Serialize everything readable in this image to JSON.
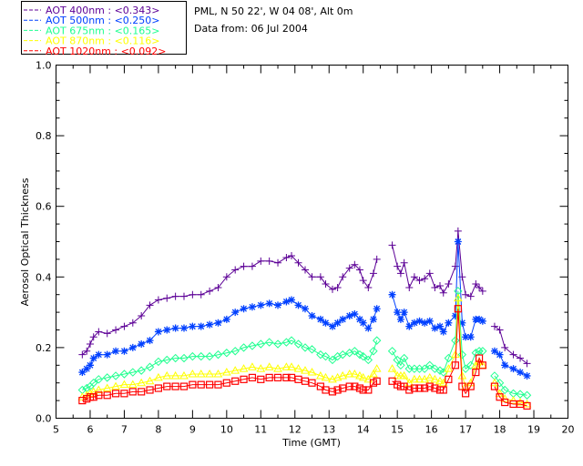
{
  "chart_data": {
    "type": "line",
    "title_lines": [
      "PML, N 50 22', W 04 08', Alt 0m",
      "Data from: 06 Jul 2004"
    ],
    "xlabel": "Time (GMT)",
    "ylabel": "Aerosol Optical Thickness",
    "xlim": [
      5,
      20
    ],
    "ylim": [
      0.0,
      1.0
    ],
    "xticks": [
      5,
      6,
      7,
      8,
      9,
      10,
      11,
      12,
      13,
      14,
      15,
      16,
      17,
      18,
      19,
      20
    ],
    "yticks": [
      "0.0",
      "0.2",
      "0.4",
      "0.6",
      "0.8",
      "1.0"
    ],
    "legend_placement": "top-left outside",
    "x": [
      5.77,
      5.9,
      6.0,
      6.1,
      6.25,
      6.5,
      6.75,
      7.0,
      7.25,
      7.5,
      7.75,
      8.0,
      8.25,
      8.5,
      8.75,
      9.0,
      9.25,
      9.5,
      9.75,
      10.0,
      10.25,
      10.5,
      10.75,
      11.0,
      11.25,
      11.5,
      11.75,
      11.9,
      12.1,
      12.3,
      12.5,
      12.75,
      12.9,
      13.1,
      13.25,
      13.4,
      13.6,
      13.75,
      13.9,
      14.0,
      14.15,
      14.3,
      14.4,
      14.6,
      14.85,
      15.0,
      15.1,
      15.2,
      15.35,
      15.5,
      15.65,
      15.8,
      15.95,
      16.1,
      16.25,
      16.35,
      16.5,
      16.7,
      16.78,
      16.9,
      17.0,
      17.15,
      17.3,
      17.4,
      17.5,
      17.7,
      17.85,
      18.0,
      18.15,
      18.4,
      18.6,
      18.8
    ],
    "series": [
      {
        "name": "AOT  400nm : <0.343>",
        "marker": "plus",
        "color": "#5c0096",
        "values": [
          0.18,
          0.19,
          0.21,
          0.23,
          0.245,
          0.24,
          0.25,
          0.26,
          0.27,
          0.29,
          0.32,
          0.335,
          0.34,
          0.345,
          0.345,
          0.35,
          0.35,
          0.36,
          0.37,
          0.4,
          0.42,
          0.43,
          0.43,
          0.445,
          0.445,
          0.44,
          0.455,
          0.46,
          0.44,
          0.42,
          0.4,
          0.4,
          0.38,
          0.365,
          0.37,
          0.4,
          0.425,
          0.435,
          0.42,
          0.39,
          0.37,
          0.41,
          0.45,
          null,
          0.49,
          0.43,
          0.41,
          0.44,
          0.37,
          0.4,
          0.39,
          0.395,
          0.41,
          0.37,
          0.375,
          0.355,
          0.38,
          0.43,
          0.53,
          0.4,
          0.35,
          0.345,
          0.38,
          0.37,
          0.36,
          null,
          0.26,
          0.25,
          0.2,
          0.18,
          0.17,
          0.155
        ]
      },
      {
        "name": "AOT  500nm : <0.250>",
        "marker": "asterisk",
        "color": "#0040ff",
        "values": [
          0.13,
          0.14,
          0.15,
          0.17,
          0.18,
          0.18,
          0.19,
          0.19,
          0.2,
          0.21,
          0.22,
          0.245,
          0.25,
          0.255,
          0.255,
          0.26,
          0.26,
          0.265,
          0.27,
          0.28,
          0.3,
          0.31,
          0.315,
          0.32,
          0.325,
          0.32,
          0.33,
          0.335,
          0.32,
          0.31,
          0.29,
          0.28,
          0.27,
          0.26,
          0.27,
          0.28,
          0.29,
          0.295,
          0.28,
          0.27,
          0.255,
          0.28,
          0.31,
          null,
          0.35,
          0.3,
          0.28,
          0.3,
          0.26,
          0.27,
          0.275,
          0.27,
          0.275,
          0.255,
          0.26,
          0.245,
          0.27,
          0.29,
          0.5,
          0.27,
          0.23,
          0.23,
          0.28,
          0.28,
          0.275,
          null,
          0.19,
          0.18,
          0.15,
          0.14,
          0.13,
          0.12
        ]
      },
      {
        "name": "AOT  675nm : <0.165>",
        "marker": "diamond",
        "color": "#20ff90",
        "values": [
          0.08,
          0.085,
          0.09,
          0.1,
          0.11,
          0.115,
          0.12,
          0.125,
          0.13,
          0.135,
          0.145,
          0.16,
          0.165,
          0.17,
          0.17,
          0.175,
          0.175,
          0.175,
          0.18,
          0.185,
          0.19,
          0.2,
          0.205,
          0.21,
          0.215,
          0.21,
          0.215,
          0.22,
          0.21,
          0.2,
          0.195,
          0.18,
          0.175,
          0.165,
          0.175,
          0.18,
          0.185,
          0.19,
          0.18,
          0.175,
          0.165,
          0.19,
          0.22,
          null,
          0.19,
          0.165,
          0.15,
          0.17,
          0.14,
          0.14,
          0.14,
          0.14,
          0.15,
          0.14,
          0.135,
          0.13,
          0.17,
          0.22,
          0.36,
          0.18,
          0.14,
          0.15,
          0.185,
          0.19,
          0.19,
          null,
          0.12,
          0.1,
          0.08,
          0.07,
          0.068,
          0.065
        ]
      },
      {
        "name": "AOT  870nm : <0.116>",
        "marker": "triangle",
        "color": "#ffff00",
        "values": [
          0.06,
          0.065,
          0.07,
          0.075,
          0.08,
          0.085,
          0.09,
          0.095,
          0.095,
          0.1,
          0.105,
          0.115,
          0.12,
          0.12,
          0.12,
          0.125,
          0.125,
          0.125,
          0.125,
          0.13,
          0.135,
          0.14,
          0.145,
          0.14,
          0.145,
          0.14,
          0.145,
          0.145,
          0.14,
          0.135,
          0.13,
          0.12,
          0.115,
          0.11,
          0.115,
          0.12,
          0.125,
          0.125,
          0.12,
          0.115,
          0.11,
          0.125,
          0.14,
          null,
          0.14,
          0.12,
          0.12,
          0.12,
          0.1,
          0.11,
          0.11,
          0.11,
          0.115,
          0.11,
          0.105,
          0.1,
          0.14,
          0.18,
          0.34,
          0.12,
          0.09,
          0.1,
          0.15,
          0.16,
          0.15,
          null,
          0.1,
          0.07,
          0.055,
          0.05,
          0.045,
          0.04
        ]
      },
      {
        "name": "AOT 1020nm : <0.092>",
        "marker": "square",
        "color": "#ff0000",
        "values": [
          0.05,
          0.055,
          0.06,
          0.06,
          0.065,
          0.065,
          0.07,
          0.07,
          0.075,
          0.075,
          0.08,
          0.085,
          0.09,
          0.09,
          0.09,
          0.095,
          0.095,
          0.095,
          0.095,
          0.1,
          0.105,
          0.11,
          0.115,
          0.11,
          0.115,
          0.115,
          0.115,
          0.115,
          0.11,
          0.105,
          0.1,
          0.09,
          0.08,
          0.075,
          0.08,
          0.085,
          0.09,
          0.09,
          0.085,
          0.08,
          0.08,
          0.1,
          0.105,
          null,
          0.105,
          0.095,
          0.09,
          0.09,
          0.08,
          0.085,
          0.085,
          0.085,
          0.09,
          0.085,
          0.08,
          0.08,
          0.11,
          0.15,
          0.31,
          0.09,
          0.07,
          0.09,
          0.13,
          0.17,
          0.15,
          null,
          0.09,
          0.06,
          0.045,
          0.04,
          0.04,
          0.035
        ]
      }
    ]
  }
}
